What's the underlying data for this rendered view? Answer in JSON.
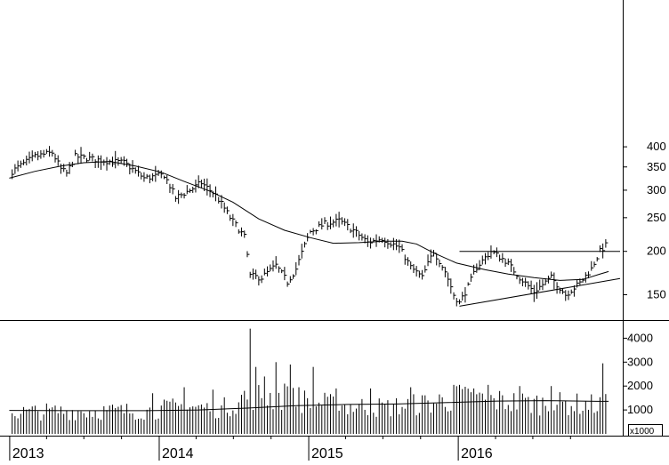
{
  "chart_data": [
    {
      "type": "bar",
      "subtype": "ohlc-weekly-price",
      "y_scale": "log",
      "ylim": [
        112,
        430
      ],
      "y_ticks": [
        150,
        200,
        250,
        300,
        350,
        400
      ],
      "y_tick_labels": [
        "150",
        "200",
        "250",
        "300",
        "350",
        "400"
      ],
      "grid": false,
      "x_range": [
        "2012-12-17",
        "2017-01-30"
      ],
      "x_ticks": [
        "2013-01-01",
        "2014-01-01",
        "2015-01-01",
        "2016-01-01"
      ],
      "x_tick_labels": [
        "2013",
        "2014",
        "2015",
        "2016"
      ],
      "price_anchors": [
        [
          "2013-01-07",
          340
        ],
        [
          "2013-03-04",
          375
        ],
        [
          "2013-04-15",
          385
        ],
        [
          "2013-05-06",
          345
        ],
        [
          "2013-05-20",
          335
        ],
        [
          "2013-06-10",
          375
        ],
        [
          "2013-08-19",
          365
        ],
        [
          "2013-10-07",
          360
        ],
        [
          "2013-11-25",
          325
        ],
        [
          "2014-01-13",
          332
        ],
        [
          "2014-02-10",
          285
        ],
        [
          "2014-03-17",
          300
        ],
        [
          "2014-04-14",
          315
        ],
        [
          "2014-05-19",
          290
        ],
        [
          "2014-06-23",
          250
        ],
        [
          "2014-07-28",
          220
        ],
        [
          "2014-08-11",
          170
        ],
        [
          "2014-09-08",
          168
        ],
        [
          "2014-10-13",
          182
        ],
        [
          "2014-11-10",
          163
        ],
        [
          "2014-12-01",
          178
        ],
        [
          "2015-01-05",
          228
        ],
        [
          "2015-02-09",
          240
        ],
        [
          "2015-03-16",
          245
        ],
        [
          "2015-04-20",
          230
        ],
        [
          "2015-05-25",
          212
        ],
        [
          "2015-06-29",
          218
        ],
        [
          "2015-08-10",
          205
        ],
        [
          "2015-09-07",
          180
        ],
        [
          "2015-10-05",
          168
        ],
        [
          "2015-11-02",
          200
        ],
        [
          "2015-11-30",
          175
        ],
        [
          "2015-12-21",
          150
        ],
        [
          "2016-01-04",
          142
        ],
        [
          "2016-01-25",
          158
        ],
        [
          "2016-02-15",
          180
        ],
        [
          "2016-03-21",
          200
        ],
        [
          "2016-04-25",
          188
        ],
        [
          "2016-05-30",
          168
        ],
        [
          "2016-07-04",
          153
        ],
        [
          "2016-08-15",
          168
        ],
        [
          "2016-09-19",
          150
        ],
        [
          "2016-10-24",
          162
        ],
        [
          "2016-11-21",
          178
        ],
        [
          "2016-12-12",
          200
        ],
        [
          "2016-12-26",
          208
        ]
      ],
      "moving_average": [
        [
          "2012-12-31",
          325
        ],
        [
          "2013-03-04",
          340
        ],
        [
          "2013-05-06",
          352
        ],
        [
          "2013-07-01",
          360
        ],
        [
          "2013-09-02",
          363
        ],
        [
          "2013-11-04",
          352
        ],
        [
          "2014-01-06",
          338
        ],
        [
          "2014-03-03",
          318
        ],
        [
          "2014-05-05",
          298
        ],
        [
          "2014-06-30",
          277
        ],
        [
          "2014-09-01",
          248
        ],
        [
          "2014-11-03",
          230
        ],
        [
          "2015-01-05",
          219
        ],
        [
          "2015-03-02",
          211
        ],
        [
          "2015-05-04",
          212
        ],
        [
          "2015-07-06",
          214
        ],
        [
          "2015-08-17",
          214
        ],
        [
          "2015-09-21",
          210
        ],
        [
          "2015-11-02",
          198
        ],
        [
          "2015-12-28",
          185
        ],
        [
          "2016-03-07",
          177
        ],
        [
          "2016-05-02",
          172
        ],
        [
          "2016-07-04",
          168
        ],
        [
          "2016-09-05",
          165
        ],
        [
          "2016-10-31",
          166
        ],
        [
          "2016-12-12",
          172
        ],
        [
          "2017-01-02",
          175
        ]
      ],
      "trendlines": [
        {
          "from": [
            "2016-01-04",
            200
          ],
          "to": [
            "2017-01-30",
            200
          ]
        },
        {
          "from": [
            "2016-01-04",
            139
          ],
          "to": [
            "2017-01-30",
            167
          ]
        }
      ]
    },
    {
      "type": "bar",
      "subtype": "weekly-volume",
      "ylim": [
        0,
        4500
      ],
      "y_ticks": [
        1000,
        2000,
        3000,
        4000
      ],
      "y_tick_labels": [
        "1000",
        "2000",
        "3000",
        "4000"
      ],
      "unit_label": "x1000",
      "volume_anchors": [
        [
          "2013-01-07",
          900
        ],
        [
          "2013-06-03",
          950
        ],
        [
          "2013-12-02",
          950
        ],
        [
          "2014-03-03",
          1150
        ],
        [
          "2014-06-02",
          1050
        ],
        [
          "2014-08-11",
          1600
        ],
        [
          "2014-11-03",
          1500
        ],
        [
          "2015-03-02",
          1200
        ],
        [
          "2015-07-06",
          1100
        ],
        [
          "2015-11-02",
          1300
        ],
        [
          "2016-01-04",
          1500
        ],
        [
          "2016-06-06",
          1300
        ],
        [
          "2016-12-26",
          1200
        ]
      ],
      "volume_spikes": [
        [
          "2013-12-16",
          1700
        ],
        [
          "2014-03-03",
          1950
        ],
        [
          "2014-05-12",
          1850
        ],
        [
          "2014-07-28",
          1800
        ],
        [
          "2014-08-11",
          4400
        ],
        [
          "2014-08-25",
          2800
        ],
        [
          "2014-09-15",
          2400
        ],
        [
          "2014-10-13",
          3000
        ],
        [
          "2014-11-03",
          2100
        ],
        [
          "2014-11-17",
          2900
        ],
        [
          "2014-12-08",
          1950
        ],
        [
          "2015-01-12",
          2800
        ],
        [
          "2015-03-09",
          1900
        ],
        [
          "2015-06-01",
          1900
        ],
        [
          "2015-09-07",
          1950
        ],
        [
          "2015-11-16",
          1650
        ],
        [
          "2015-12-21",
          2050
        ],
        [
          "2016-01-04",
          2050
        ],
        [
          "2016-02-08",
          1900
        ],
        [
          "2016-03-14",
          2050
        ],
        [
          "2016-05-30",
          2000
        ],
        [
          "2016-08-15",
          2000
        ],
        [
          "2016-12-19",
          2950
        ],
        [
          "2017-01-02",
          1800
        ]
      ],
      "moving_average": [
        [
          "2012-12-31",
          980
        ],
        [
          "2013-06-03",
          970
        ],
        [
          "2013-12-02",
          970
        ],
        [
          "2014-04-07",
          1000
        ],
        [
          "2014-08-04",
          1080
        ],
        [
          "2014-12-01",
          1180
        ],
        [
          "2015-04-06",
          1230
        ],
        [
          "2015-08-03",
          1250
        ],
        [
          "2015-12-07",
          1310
        ],
        [
          "2016-04-04",
          1370
        ],
        [
          "2016-08-01",
          1390
        ],
        [
          "2016-12-05",
          1360
        ],
        [
          "2017-01-02",
          1360
        ]
      ]
    }
  ]
}
